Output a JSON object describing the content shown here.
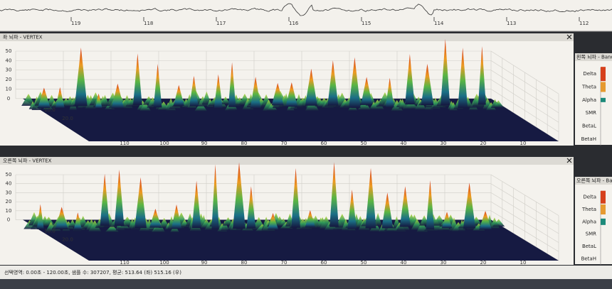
{
  "eeg_strip": {
    "time_labels": [
      "119",
      "118",
      "117",
      "116",
      "115",
      "114",
      "113",
      "112"
    ]
  },
  "panels": [
    {
      "title": "좌 뇌파 - VERTEX",
      "band_title": "왼쪽 뇌파 - Band",
      "y_labels": [
        "50",
        "40",
        "30",
        "20",
        "10",
        "0"
      ],
      "x_labels": [
        "110",
        "100",
        "90",
        "80",
        "70",
        "60",
        "50",
        "40",
        "30",
        "20",
        "10"
      ],
      "depth_labels": [
        "10.0",
        "20.0"
      ],
      "bands": [
        "Delta",
        "Theta",
        "Alpha",
        "SMR",
        "BetaL",
        "BetaH"
      ]
    },
    {
      "title": "오른쪽 뇌파 - VERTEX",
      "band_title": "오른쪽 뇌파 - Band",
      "y_labels": [
        "50",
        "40",
        "30",
        "20",
        "10",
        "0"
      ],
      "x_labels": [
        "110",
        "100",
        "90",
        "80",
        "70",
        "60",
        "50",
        "40",
        "30",
        "20",
        "10"
      ],
      "depth_labels": [
        "10.0",
        "20.0"
      ],
      "bands": [
        "Delta",
        "Theta",
        "Alpha",
        "SMR",
        "BetaL",
        "BetaH"
      ]
    }
  ],
  "status": "선택영역: 0.00초 - 120.00초, 샘플 수: 307207, 평균: 513.64 (좌) 515.16 (우)"
}
